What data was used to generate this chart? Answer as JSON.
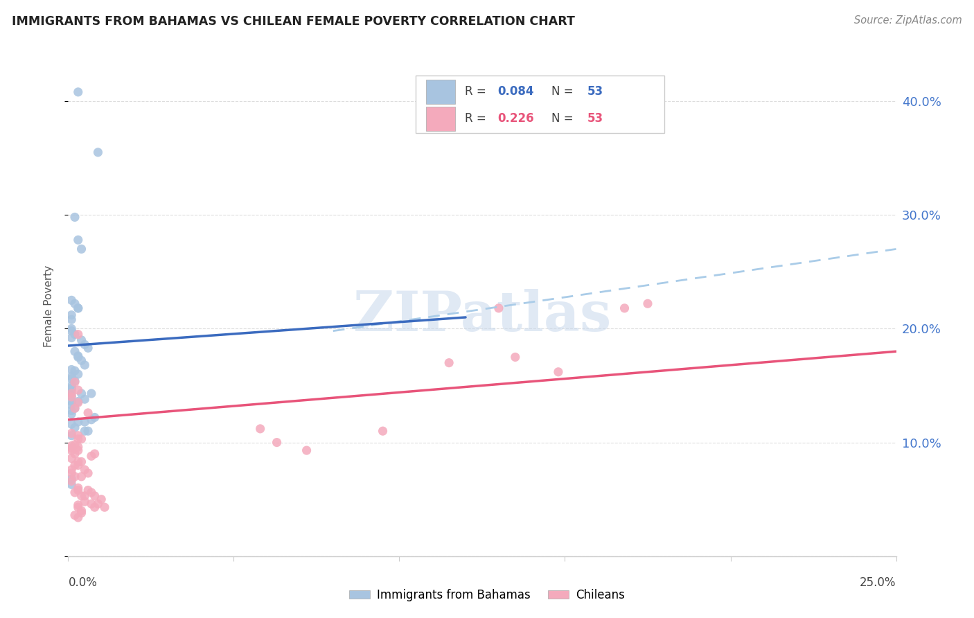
{
  "title": "IMMIGRANTS FROM BAHAMAS VS CHILEAN FEMALE POVERTY CORRELATION CHART",
  "source": "Source: ZipAtlas.com",
  "ylabel": "Female Poverty",
  "right_yticks": [
    "10.0%",
    "20.0%",
    "30.0%",
    "40.0%"
  ],
  "right_ytick_vals": [
    0.1,
    0.2,
    0.3,
    0.4
  ],
  "watermark": "ZIPatlas",
  "blue_color": "#A8C4E0",
  "pink_color": "#F4AABC",
  "blue_line_color": "#3B6BBF",
  "pink_line_color": "#E8547A",
  "dashed_color": "#AACCE8",
  "xlim": [
    0.0,
    0.25
  ],
  "ylim": [
    0.0,
    0.44
  ],
  "blue_scatter_x": [
    0.003,
    0.009,
    0.002,
    0.003,
    0.004,
    0.001,
    0.002,
    0.003,
    0.001,
    0.001,
    0.001,
    0.001,
    0.002,
    0.003,
    0.001,
    0.004,
    0.005,
    0.006,
    0.002,
    0.003,
    0.003,
    0.004,
    0.005,
    0.001,
    0.002,
    0.003,
    0.001,
    0.001,
    0.002,
    0.001,
    0.001,
    0.001,
    0.004,
    0.007,
    0.001,
    0.005,
    0.001,
    0.003,
    0.001,
    0.002,
    0.001,
    0.001,
    0.008,
    0.007,
    0.005,
    0.003,
    0.001,
    0.002,
    0.005,
    0.001,
    0.001,
    0.001,
    0.006
  ],
  "blue_scatter_y": [
    0.408,
    0.355,
    0.298,
    0.278,
    0.27,
    0.225,
    0.222,
    0.218,
    0.212,
    0.208,
    0.2,
    0.198,
    0.195,
    0.218,
    0.192,
    0.19,
    0.186,
    0.183,
    0.18,
    0.176,
    0.175,
    0.172,
    0.168,
    0.164,
    0.163,
    0.16,
    0.158,
    0.156,
    0.154,
    0.15,
    0.148,
    0.146,
    0.143,
    0.143,
    0.141,
    0.138,
    0.136,
    0.136,
    0.133,
    0.13,
    0.128,
    0.125,
    0.122,
    0.12,
    0.118,
    0.118,
    0.116,
    0.113,
    0.11,
    0.106,
    0.068,
    0.063,
    0.11
  ],
  "pink_scatter_x": [
    0.001,
    0.001,
    0.001,
    0.002,
    0.003,
    0.004,
    0.002,
    0.003,
    0.001,
    0.001,
    0.002,
    0.001,
    0.003,
    0.003,
    0.001,
    0.001,
    0.002,
    0.001,
    0.003,
    0.002,
    0.005,
    0.006,
    0.004,
    0.003,
    0.001,
    0.003,
    0.002,
    0.006,
    0.004,
    0.003,
    0.005,
    0.002,
    0.003,
    0.005,
    0.007,
    0.008,
    0.006,
    0.007,
    0.004,
    0.008,
    0.01,
    0.009,
    0.011,
    0.003,
    0.003,
    0.004,
    0.004,
    0.002,
    0.003,
    0.003,
    0.003,
    0.008,
    0.007
  ],
  "pink_scatter_y": [
    0.143,
    0.108,
    0.095,
    0.153,
    0.195,
    0.083,
    0.098,
    0.08,
    0.076,
    0.073,
    0.07,
    0.066,
    0.106,
    0.103,
    0.097,
    0.093,
    0.09,
    0.086,
    0.083,
    0.08,
    0.076,
    0.073,
    0.07,
    0.146,
    0.14,
    0.135,
    0.13,
    0.126,
    0.103,
    0.058,
    0.053,
    0.056,
    0.06,
    0.048,
    0.046,
    0.043,
    0.058,
    0.056,
    0.053,
    0.053,
    0.05,
    0.046,
    0.043,
    0.045,
    0.043,
    0.04,
    0.038,
    0.036,
    0.034,
    0.093,
    0.096,
    0.09,
    0.088
  ],
  "pink_scatter_x_outliers": [
    0.135,
    0.148,
    0.095,
    0.115,
    0.13,
    0.168,
    0.175,
    0.063,
    0.072,
    0.058
  ],
  "pink_scatter_y_outliers": [
    0.175,
    0.162,
    0.11,
    0.17,
    0.218,
    0.218,
    0.222,
    0.1,
    0.093,
    0.112
  ],
  "blue_line_x0": 0.0,
  "blue_line_y0": 0.185,
  "blue_line_x1": 0.12,
  "blue_line_y1": 0.21,
  "pink_line_x0": 0.0,
  "pink_line_x1": 0.25,
  "pink_line_y0": 0.12,
  "pink_line_y1": 0.18,
  "dashed_line_x0": 0.08,
  "dashed_line_y0": 0.198,
  "dashed_line_x1": 0.25,
  "dashed_line_y1": 0.27
}
